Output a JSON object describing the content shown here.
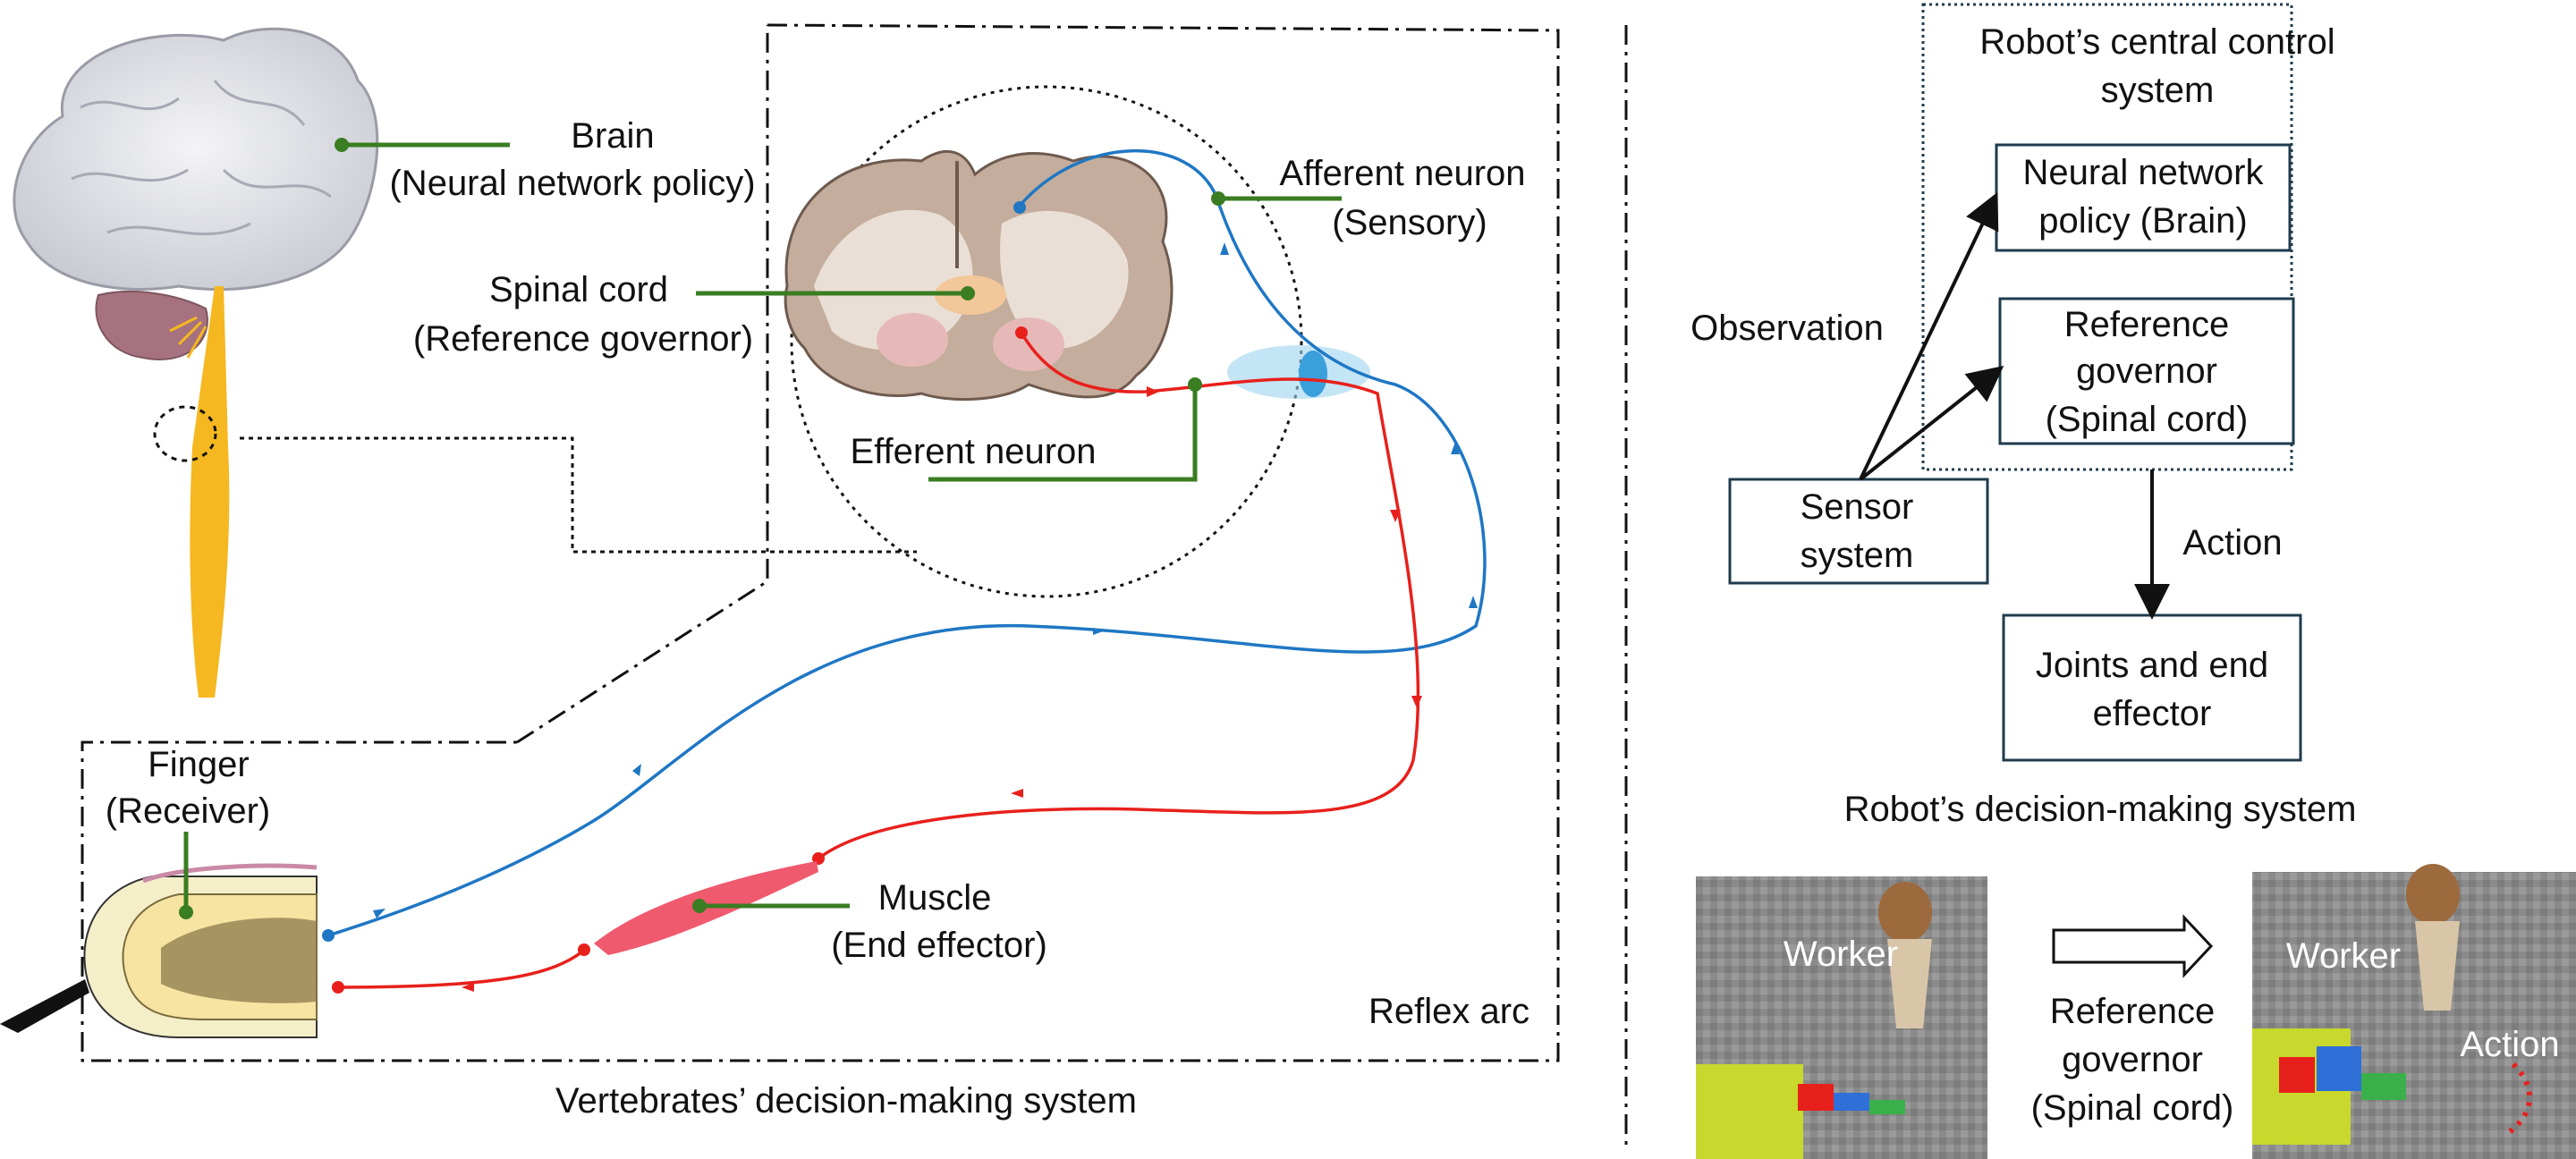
{
  "left_panel": {
    "title": "Vertebrates’ decision-making system",
    "reflex_arc_label": "Reflex arc",
    "labels": {
      "brain": [
        "Brain",
        "(Neural network policy)"
      ],
      "afferent": [
        "Afferent neuron",
        "(Sensory)"
      ],
      "spinal": [
        "Spinal cord",
        "(Reference governor)"
      ],
      "efferent": [
        "Efferent neuron"
      ],
      "finger": [
        "Finger",
        "(Receiver)"
      ],
      "muscle": [
        "Muscle",
        "(End effector)"
      ]
    }
  },
  "right_panel": {
    "control_box_title": [
      "Robot’s central control",
      "system"
    ],
    "nn_box": [
      "Neural network",
      "policy (Brain)"
    ],
    "rg_box": [
      "Reference",
      "governor",
      "(Spinal cord)"
    ],
    "sensor_box": [
      "Sensor",
      "system"
    ],
    "joints_box": [
      "Joints and end",
      "effector"
    ],
    "observation_label": "Observation",
    "action_label": "Action",
    "caption": "Robot’s decision-making system",
    "sim_left_label": "Worker",
    "sim_right_label": "Worker",
    "sim_right_action": "Action",
    "sim_transition": [
      "Reference",
      "governor",
      "(Spinal cord)"
    ]
  },
  "colors": {
    "afferent": "#1f77c4",
    "efferent": "#e8201c",
    "leader": "#3a7d22",
    "spinal": "#f5b820",
    "muscle": "#ef5a6f",
    "box_stroke": "#1f3b4d"
  }
}
